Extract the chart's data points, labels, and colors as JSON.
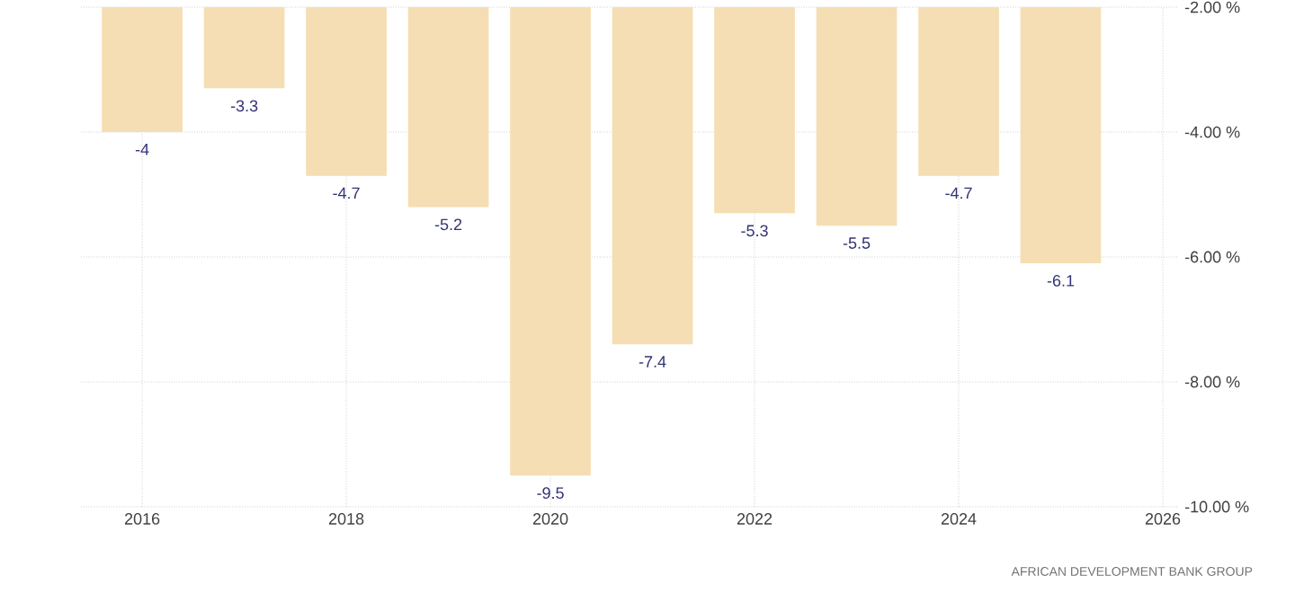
{
  "chart_data": {
    "type": "bar",
    "x": [
      2016,
      2017,
      2018,
      2019,
      2020,
      2021,
      2022,
      2023,
      2024,
      2025
    ],
    "values": [
      -4,
      -3.3,
      -4.7,
      -5.2,
      -9.5,
      -7.4,
      -5.3,
      -5.5,
      -4.7,
      -6.1
    ],
    "value_labels": [
      "-4",
      "-3.3",
      "-4.7",
      "-5.2",
      "-9.5",
      "-7.4",
      "-5.3",
      "-5.5",
      "-4.7",
      "-6.1"
    ],
    "color": "#f5deb3",
    "xlim": [
      2015.4,
      2026.15
    ],
    "xticks": [
      2016,
      2018,
      2020,
      2022,
      2024,
      2026
    ],
    "ylim": [
      -10,
      -2
    ],
    "yticks": [
      {
        "value": -2,
        "label": "-2.00 %"
      },
      {
        "value": -4,
        "label": "-4.00 %"
      },
      {
        "value": -6,
        "label": "-6.00 %"
      },
      {
        "value": -8,
        "label": "-8.00 %"
      },
      {
        "value": -10,
        "label": "-10.00 %"
      }
    ],
    "grid": true,
    "annotations": [
      "AFRICAN DEVELOPMENT BANK GROUP"
    ]
  }
}
